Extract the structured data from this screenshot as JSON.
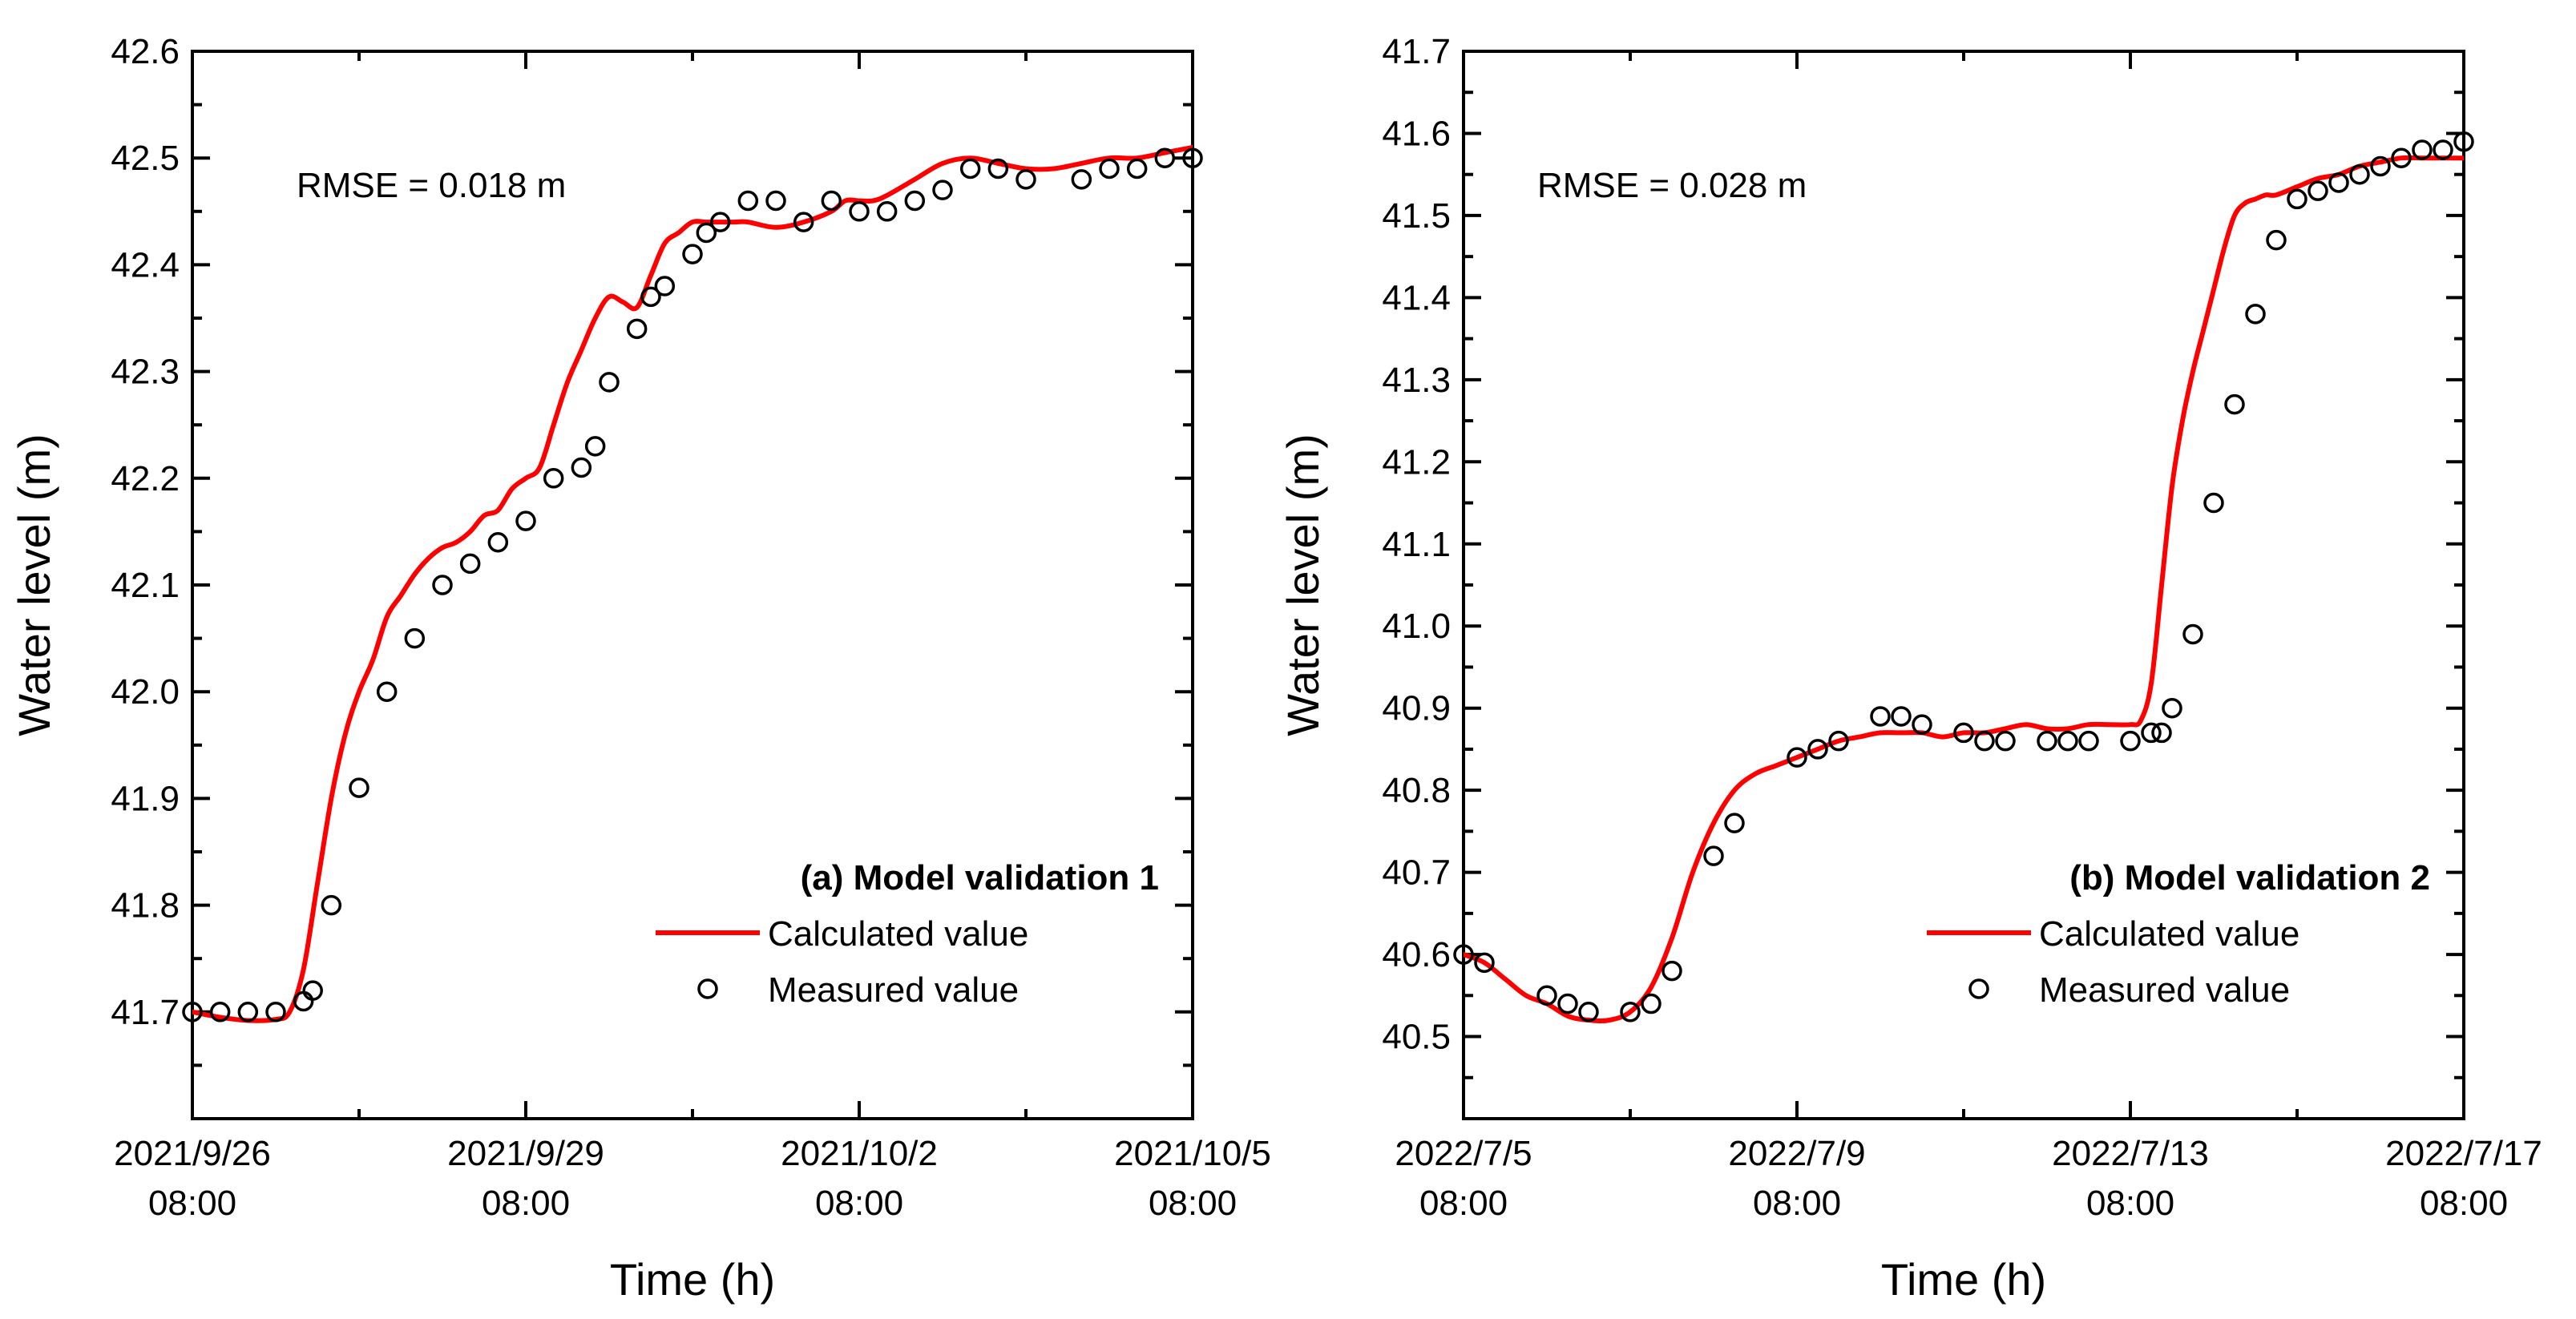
{
  "chart_data": [
    {
      "type": "line",
      "panel_label": "(a) Model validation 1",
      "annotation": "RMSE = 0.018 m",
      "xlabel": "Time (h)",
      "ylabel": "Water level (m)",
      "x_unit": "hours",
      "xlim": [
        0,
        216
      ],
      "ylim": [
        41.6,
        42.6
      ],
      "yticks": [
        "41.7",
        "41.8",
        "41.9",
        "42.0",
        "42.1",
        "42.2",
        "42.3",
        "42.4",
        "42.5",
        "42.6"
      ],
      "xticks": [
        {
          "x": 0,
          "date": "2021/9/26",
          "time": "08:00"
        },
        {
          "x": 72,
          "date": "2021/9/29",
          "time": "08:00"
        },
        {
          "x": 144,
          "date": "2021/10/2",
          "time": "08:00"
        },
        {
          "x": 216,
          "date": "2021/10/5",
          "time": "08:00"
        }
      ],
      "legend_position": "bottom-right",
      "grid": false,
      "series": [
        {
          "name": "Calculated value",
          "kind": "line",
          "color": "#ff0000",
          "x": [
            0,
            6,
            12,
            18,
            21,
            24,
            27,
            30,
            33,
            36,
            39,
            42,
            45,
            48,
            51,
            54,
            57,
            60,
            63,
            66,
            69,
            72,
            75,
            78,
            81,
            84,
            87,
            90,
            93,
            96,
            99,
            102,
            105,
            108,
            111,
            114,
            117,
            120,
            126,
            132,
            138,
            141,
            144,
            147,
            150,
            156,
            162,
            168,
            174,
            180,
            186,
            192,
            198,
            204,
            210,
            216
          ],
          "y": [
            41.7,
            41.695,
            41.692,
            41.693,
            41.7,
            41.74,
            41.82,
            41.9,
            41.96,
            42.0,
            42.03,
            42.07,
            42.09,
            42.11,
            42.125,
            42.135,
            42.14,
            42.15,
            42.165,
            42.17,
            42.19,
            42.2,
            42.21,
            42.25,
            42.29,
            42.32,
            42.35,
            42.37,
            42.365,
            42.36,
            42.39,
            42.42,
            42.43,
            42.44,
            42.44,
            42.44,
            42.44,
            42.44,
            42.435,
            42.44,
            42.45,
            42.46,
            42.46,
            42.46,
            42.465,
            42.48,
            42.495,
            42.5,
            42.495,
            42.49,
            42.49,
            42.495,
            42.5,
            42.5,
            42.505,
            42.51
          ]
        },
        {
          "name": "Measured value",
          "kind": "scatter",
          "color": "#000000",
          "x": [
            0,
            6,
            12,
            18,
            24,
            26,
            30,
            36,
            42,
            48,
            54,
            60,
            66,
            72,
            78,
            84,
            87,
            90,
            96,
            99,
            102,
            108,
            111,
            114,
            120,
            126,
            132,
            138,
            144,
            150,
            156,
            162,
            168,
            174,
            180,
            192,
            198,
            204,
            210,
            216
          ],
          "y": [
            41.7,
            41.7,
            41.7,
            41.7,
            41.71,
            41.72,
            41.8,
            41.91,
            42.0,
            42.05,
            42.1,
            42.12,
            42.14,
            42.16,
            42.2,
            42.21,
            42.23,
            42.29,
            42.34,
            42.37,
            42.38,
            42.41,
            42.43,
            42.44,
            42.46,
            42.46,
            42.44,
            42.46,
            42.45,
            42.45,
            42.46,
            42.47,
            42.49,
            42.49,
            42.48,
            42.48,
            42.49,
            42.49,
            42.5,
            42.5
          ]
        }
      ]
    },
    {
      "type": "line",
      "panel_label": "(b) Model validation 2",
      "annotation": "RMSE = 0.028 m",
      "xlabel": "Time (h)",
      "ylabel": "Water level (m)",
      "x_unit": "hours",
      "xlim": [
        0,
        288
      ],
      "ylim": [
        40.4,
        41.7
      ],
      "yticks": [
        "40.5",
        "40.6",
        "40.7",
        "40.8",
        "40.9",
        "41.0",
        "41.1",
        "41.2",
        "41.3",
        "41.4",
        "41.5",
        "41.6",
        "41.7"
      ],
      "xticks": [
        {
          "x": 0,
          "date": "2022/7/5",
          "time": "08:00"
        },
        {
          "x": 96,
          "date": "2022/7/9",
          "time": "08:00"
        },
        {
          "x": 192,
          "date": "2022/7/13",
          "time": "08:00"
        },
        {
          "x": 288,
          "date": "2022/7/17",
          "time": "08:00"
        }
      ],
      "legend_position": "bottom-right",
      "grid": false,
      "series": [
        {
          "name": "Calculated value",
          "kind": "line",
          "color": "#ff0000",
          "x": [
            0,
            6,
            12,
            18,
            24,
            30,
            36,
            42,
            48,
            54,
            60,
            66,
            72,
            78,
            84,
            90,
            96,
            102,
            108,
            114,
            120,
            126,
            132,
            138,
            144,
            150,
            156,
            162,
            168,
            174,
            180,
            186,
            192,
            195,
            198,
            201,
            204,
            207,
            210,
            213,
            216,
            219,
            222,
            225,
            228,
            231,
            234,
            240,
            246,
            252,
            258,
            264,
            270,
            276,
            282,
            288
          ],
          "y": [
            40.6,
            40.59,
            40.57,
            40.55,
            40.54,
            40.525,
            40.52,
            40.52,
            40.53,
            40.56,
            40.62,
            40.7,
            40.76,
            40.8,
            40.82,
            40.83,
            40.84,
            40.85,
            40.86,
            40.865,
            40.87,
            40.87,
            40.87,
            40.865,
            40.87,
            40.87,
            40.875,
            40.88,
            40.875,
            40.875,
            40.88,
            40.88,
            40.88,
            40.885,
            40.93,
            41.05,
            41.17,
            41.25,
            41.31,
            41.36,
            41.41,
            41.46,
            41.5,
            41.515,
            41.52,
            41.525,
            41.525,
            41.535,
            41.545,
            41.55,
            41.56,
            41.565,
            41.57,
            41.57,
            41.57,
            41.57
          ]
        },
        {
          "name": "Measured value",
          "kind": "scatter",
          "color": "#000000",
          "x": [
            0,
            6,
            24,
            30,
            36,
            48,
            54,
            60,
            72,
            78,
            96,
            102,
            108,
            120,
            126,
            132,
            144,
            150,
            156,
            168,
            174,
            180,
            192,
            198,
            201,
            204,
            210,
            216,
            222,
            228,
            234,
            240,
            246,
            252,
            258,
            264,
            270,
            276,
            282,
            288
          ],
          "y": [
            40.6,
            40.59,
            40.55,
            40.54,
            40.53,
            40.53,
            40.54,
            40.58,
            40.72,
            40.76,
            40.84,
            40.85,
            40.86,
            40.89,
            40.89,
            40.88,
            40.87,
            40.86,
            40.86,
            40.86,
            40.86,
            40.86,
            40.86,
            40.87,
            40.87,
            40.9,
            40.99,
            41.15,
            41.27,
            41.38,
            41.47,
            41.52,
            41.53,
            41.54,
            41.55,
            41.56,
            41.57,
            41.58,
            41.58,
            41.59
          ]
        }
      ]
    }
  ]
}
